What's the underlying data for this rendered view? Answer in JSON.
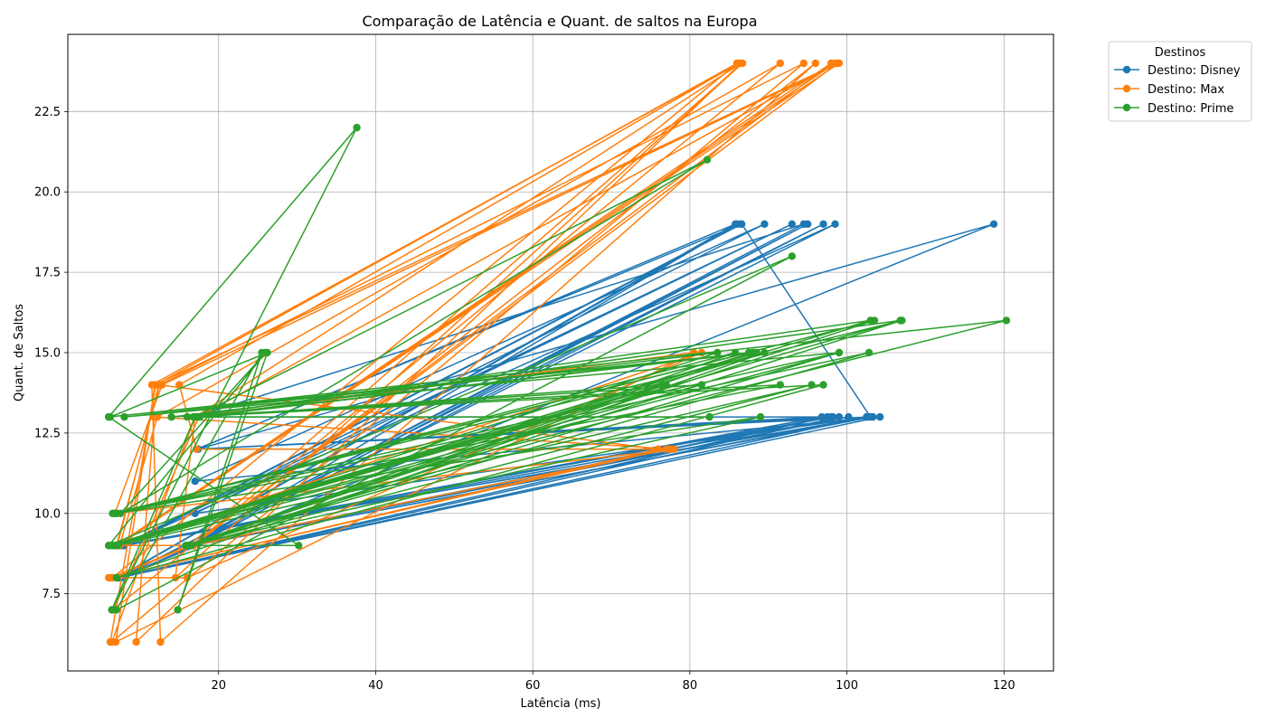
{
  "chart_data": {
    "type": "line",
    "title": "Comparação de Latência e Quant. de saltos na Europa",
    "xlabel": "Latência (ms)",
    "ylabel": "Quant. de Saltos",
    "xlim": [
      0.8,
      126.3
    ],
    "ylim": [
      5.1,
      24.9
    ],
    "x_ticks": [
      20,
      40,
      60,
      80,
      100,
      120
    ],
    "y_ticks": [
      7.5,
      10.0,
      12.5,
      15.0,
      17.5,
      20.0,
      22.5
    ],
    "y_tick_labels": [
      "7.5",
      "10.0",
      "12.5",
      "15.0",
      "17.5",
      "20.0",
      "22.5"
    ],
    "grid": true,
    "legend_title": "Destinos",
    "legend_position": "outside-top-right",
    "series": [
      {
        "name": "Destino: Disney",
        "color": "#1f77b4",
        "marker": "circle",
        "points": [
          [
            7.2,
            8
          ],
          [
            86,
            19
          ],
          [
            16.5,
            9
          ],
          [
            98,
            13
          ],
          [
            7.6,
            9
          ],
          [
            93,
            19
          ],
          [
            17,
            10
          ],
          [
            102.5,
            13
          ],
          [
            7.4,
            8
          ],
          [
            97,
            19
          ],
          [
            16.8,
            9
          ],
          [
            103.3,
            13
          ],
          [
            7.8,
            9
          ],
          [
            86.5,
            19
          ],
          [
            17.2,
            12
          ],
          [
            99,
            13
          ],
          [
            7.5,
            8
          ],
          [
            95,
            19
          ],
          [
            16.4,
            9
          ],
          [
            100.2,
            13
          ],
          [
            8,
            9
          ],
          [
            89.5,
            19
          ],
          [
            17,
            11
          ],
          [
            104.2,
            13
          ],
          [
            7.3,
            8
          ],
          [
            118.7,
            19
          ],
          [
            17.4,
            12
          ],
          [
            96.8,
            13
          ],
          [
            7.7,
            9
          ],
          [
            98.5,
            19
          ],
          [
            16.6,
            9
          ],
          [
            97.5,
            13
          ],
          [
            7.1,
            8
          ],
          [
            85.8,
            19
          ],
          [
            17.3,
            12
          ],
          [
            102.8,
            13
          ],
          [
            8,
            9
          ],
          [
            86.6,
            19
          ],
          [
            103,
            13
          ],
          [
            16.8,
            9
          ],
          [
            7.6,
            8
          ],
          [
            94.5,
            19
          ],
          [
            16.9,
            13
          ],
          [
            98.2,
            13
          ]
        ]
      },
      {
        "name": "Destino: Max",
        "color": "#ff7f0e",
        "marker": "circle",
        "points": [
          [
            6.2,
            6
          ],
          [
            12,
            14
          ],
          [
            86,
            24
          ],
          [
            6.5,
            8
          ],
          [
            16.5,
            9
          ],
          [
            98,
            24
          ],
          [
            7,
            9
          ],
          [
            12.5,
            14
          ],
          [
            94.5,
            24
          ],
          [
            6.4,
            6
          ],
          [
            17,
            13
          ],
          [
            86.5,
            24
          ],
          [
            9.5,
            6
          ],
          [
            11.8,
            13
          ],
          [
            78,
            12
          ],
          [
            6.8,
            10
          ],
          [
            12.8,
            14
          ],
          [
            99,
            24
          ],
          [
            7.2,
            9
          ],
          [
            16.8,
            9
          ],
          [
            96,
            24
          ],
          [
            12.6,
            6
          ],
          [
            11.5,
            14
          ],
          [
            86.2,
            24
          ],
          [
            15,
            14
          ],
          [
            17.2,
            12
          ],
          [
            77,
            12
          ],
          [
            6,
            8
          ],
          [
            16,
            8
          ],
          [
            81.5,
            15
          ],
          [
            7.4,
            9
          ],
          [
            12.2,
            13
          ],
          [
            91.5,
            24
          ],
          [
            6.6,
            7
          ],
          [
            17.5,
            13
          ],
          [
            98.5,
            24
          ],
          [
            7.1,
            9
          ],
          [
            12.4,
            14
          ],
          [
            76,
            12
          ],
          [
            6.3,
            8
          ],
          [
            16.2,
            9
          ],
          [
            86.7,
            24
          ],
          [
            14.5,
            8
          ],
          [
            17,
            13
          ],
          [
            80.5,
            15
          ],
          [
            6.9,
            6
          ],
          [
            11.9,
            14
          ],
          [
            98.8,
            24
          ],
          [
            16.6,
            9
          ],
          [
            77.5,
            12
          ]
        ]
      },
      {
        "name": "Destino: Prime",
        "color": "#2ca02c",
        "marker": "circle",
        "points": [
          [
            6,
            13
          ],
          [
            37.6,
            22
          ],
          [
            6.4,
            7
          ],
          [
            17,
            13
          ],
          [
            82.2,
            21
          ],
          [
            7.5,
            10
          ],
          [
            26,
            15
          ],
          [
            6,
            9
          ],
          [
            93,
            18
          ],
          [
            7,
            7
          ],
          [
            25.5,
            15
          ],
          [
            14.8,
            7
          ],
          [
            26.2,
            15
          ],
          [
            6.2,
            13
          ],
          [
            120.3,
            16
          ],
          [
            6.8,
            9
          ],
          [
            103,
            16
          ],
          [
            16,
            13
          ],
          [
            97,
            14
          ],
          [
            7,
            8
          ],
          [
            89.5,
            15
          ],
          [
            6.4,
            9
          ],
          [
            106.8,
            16
          ],
          [
            17.6,
            13
          ],
          [
            76.5,
            14
          ],
          [
            6,
            9
          ],
          [
            88.5,
            15
          ],
          [
            8,
            13
          ],
          [
            99,
            15
          ],
          [
            6.5,
            10
          ],
          [
            107,
            16
          ],
          [
            16.5,
            9
          ],
          [
            95.5,
            14
          ],
          [
            7.2,
            9
          ],
          [
            83.5,
            15
          ],
          [
            14,
            13
          ],
          [
            91.5,
            14
          ],
          [
            6.8,
            10
          ],
          [
            103.5,
            16
          ],
          [
            15.8,
            9
          ],
          [
            88.2,
            15
          ],
          [
            6,
            13
          ],
          [
            30.2,
            9
          ],
          [
            16,
            9
          ],
          [
            102.8,
            15
          ],
          [
            7,
            10
          ],
          [
            87.5,
            15
          ],
          [
            16.8,
            13
          ],
          [
            81.5,
            14
          ],
          [
            6.5,
            9
          ],
          [
            77,
            14
          ],
          [
            16.2,
            9
          ],
          [
            89,
            13
          ],
          [
            6.9,
            10
          ],
          [
            85.8,
            15
          ],
          [
            16,
            9
          ],
          [
            99,
            15
          ],
          [
            6.6,
            9
          ],
          [
            88,
            15
          ],
          [
            17.2,
            13
          ],
          [
            82.5,
            13
          ]
        ]
      }
    ]
  }
}
